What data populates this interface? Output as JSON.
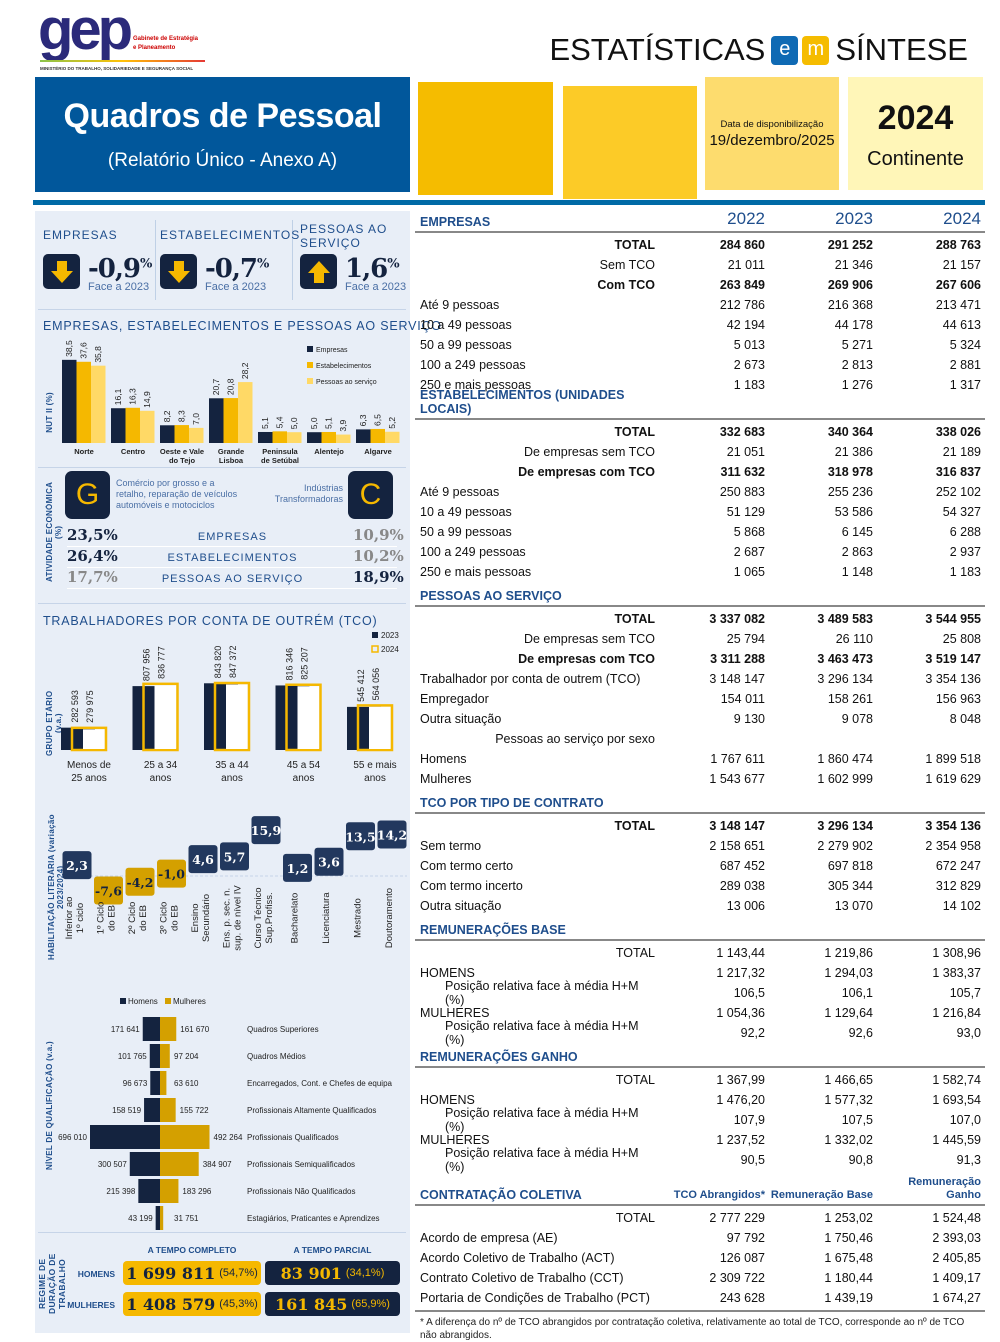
{
  "logo": {
    "text": "gep",
    "sub1": "Gabinete de Estratégia",
    "sub2": "e Planeamento",
    "ministry": "MINISTÉRIO DO TRABALHO, SOLIDARIEDADE E SEGURANÇA SOCIAL"
  },
  "series_title": {
    "part1": "ESTATÍSTICAS",
    "e": "e",
    "m": "m",
    "part2": "SÍNTESE"
  },
  "header": {
    "title": "Quadros de Pessoal",
    "subtitle": "(Relatório Único - Anexo A)",
    "date_label": "Data de disponibilização",
    "date": "19/dezembro/2025",
    "year": "2024",
    "region": "Continente"
  },
  "colors": {
    "navy": "#14233f",
    "blue": "#01579b",
    "yellow": "#f5b800",
    "light_yellow": "#ffd966",
    "gold": "#d4a000",
    "text_blue": "#1f4e8c"
  },
  "kpis": [
    {
      "label": "EMPRESAS",
      "value": "-0,9",
      "unit": "%",
      "note": "Face a 2023",
      "direction": "down",
      "icon": "arrow-down-icon"
    },
    {
      "label": "ESTABELECIMENTOS",
      "value": "-0,7",
      "unit": "%",
      "note": "Face a 2023",
      "direction": "down",
      "icon": "arrow-down-icon"
    },
    {
      "label": "PESSOAS AO SERVIÇO",
      "value": "1,6",
      "unit": "%",
      "note": "Face a 2023",
      "direction": "up",
      "icon": "arrow-up-icon"
    }
  ],
  "chart_data": [
    {
      "type": "bar",
      "title": "EMPRESAS, ESTABELECIMENTOS E PESSOAS AO SERVIÇO",
      "ylabel": "NUT II (%)",
      "categories": [
        "Norte",
        "Centro",
        "Oeste e Vale do Tejo",
        "Grande Lisboa",
        "Península de Setúbal",
        "Alentejo",
        "Algarve"
      ],
      "category_lines": [
        [
          "Norte"
        ],
        [
          "Centro"
        ],
        [
          "Oeste e Vale",
          "do Tejo"
        ],
        [
          "Grande",
          "Lisboa"
        ],
        [
          "Peninsula",
          "de Setúbal"
        ],
        [
          "Alentejo"
        ],
        [
          "Algarve"
        ]
      ],
      "legend": "top-right",
      "series": [
        {
          "name": "Empresas",
          "color": "#14233f",
          "values": [
            38.5,
            16.1,
            8.2,
            20.7,
            5.1,
            5.0,
            6.3
          ],
          "labels": [
            "38,5",
            "16,1",
            "8,2",
            "20,7",
            "5,1",
            "5,0",
            "6,3"
          ]
        },
        {
          "name": "Estabelecimentos",
          "color": "#f5b800",
          "values": [
            37.6,
            16.3,
            8.3,
            20.8,
            5.4,
            5.1,
            6.5
          ],
          "labels": [
            "37,6",
            "16,3",
            "8,3",
            "20,8",
            "5,4",
            "5,1",
            "6,5"
          ]
        },
        {
          "name": "Pessoas ao serviço",
          "color": "#ffd966",
          "values": [
            35.8,
            14.9,
            7.0,
            28.2,
            5.0,
            3.9,
            5.2
          ],
          "labels": [
            "35,8",
            "14,9",
            "7,0",
            "28,2",
            "5,0",
            "3,9",
            "5,2"
          ]
        }
      ]
    },
    {
      "type": "bar",
      "title": "TRABALHADORES POR CONTA DE OUTRÉM (TCO)",
      "ylabel": "GRUPO ETÁRIO (v.a.)",
      "categories": [
        "Menos de 25 anos",
        "25 a 34 anos",
        "35 a 44 anos",
        "45 a 54 anos",
        "55 e mais anos"
      ],
      "category_lines": [
        [
          "Menos de",
          "25 anos"
        ],
        [
          "25 a 34",
          "anos"
        ],
        [
          "35 a 44",
          "anos"
        ],
        [
          "45 a 54",
          "anos"
        ],
        [
          "55 e mais",
          "anos"
        ]
      ],
      "legend": "top-right",
      "series": [
        {
          "name": "2023",
          "values": [
            282593,
            807956,
            843820,
            816346,
            545412
          ],
          "labels": [
            "282 593",
            "807 956",
            "843 820",
            "816 346",
            "545 412"
          ]
        },
        {
          "name": "2024",
          "values": [
            279975,
            836777,
            847372,
            825207,
            564056
          ],
          "labels": [
            "279 975",
            "836 777",
            "847 372",
            "825 207",
            "564 056"
          ]
        }
      ]
    },
    {
      "type": "bar",
      "ylabel": "HABILITAÇÃO LITERÁRIA (variação 2023/2024)",
      "categories": [
        "Inferior ao 1º ciclo",
        "1º Ciclo do EB",
        "2º Ciclo do EB",
        "3º Ciclo do EB",
        "Ensino Secundário",
        "Ens. p. sec. n. sup. de nível IV",
        "Curso Técnico Sup.Profiss.",
        "Bacharelato",
        "Licenciatura",
        "Mestrado",
        "Doutoramento"
      ],
      "category_lines": [
        [
          "Inferior ao",
          "1º ciclo"
        ],
        [
          "1º Ciclo",
          "do EB"
        ],
        [
          "2º Ciclo",
          "do EB"
        ],
        [
          "3º Ciclo",
          "do EB"
        ],
        [
          "Ensino",
          "Secundário"
        ],
        [
          "Ens. p. sec. n.",
          "sup. de nível IV"
        ],
        [
          "Curso Técnico",
          "Sup.Profiss."
        ],
        [
          "Bacharelato"
        ],
        [
          "Licenciatura"
        ],
        [
          "Mestrado"
        ],
        [
          "Doutoramento"
        ]
      ],
      "values": [
        2.3,
        -7.6,
        -4.2,
        -1.0,
        4.6,
        5.7,
        15.9,
        1.2,
        3.6,
        13.5,
        14.2
      ],
      "labels": [
        "2,3",
        "-7,6",
        "-4,2",
        "-1,0",
        "4,6",
        "5,7",
        "15,9",
        "1,2",
        "3,6",
        "13,5",
        "14,2"
      ]
    },
    {
      "type": "bar",
      "orientation": "horizontal-pyramid",
      "ylabel": "NÍVEL DE QUALIFICAÇÃO (v.a.)",
      "legend": "top",
      "categories": [
        "Quadros Superiores",
        "Quadros Médios",
        "Encarregados, Cont. e Chefes de equipa",
        "Profissionais Altamente Qualificados",
        "Profissionais Qualificados",
        "Profissionais Semiqualificados",
        "Profissionais Não Qualificados",
        "Estagiários, Praticantes e Aprendizes"
      ],
      "series": [
        {
          "name": "Homens",
          "color": "#14233f",
          "values": [
            171641,
            101765,
            96673,
            158519,
            696010,
            300507,
            215398,
            43199
          ],
          "labels": [
            "171 641",
            "101 765",
            "96 673",
            "158 519",
            "696 010",
            "300 507",
            "215 398",
            "43 199"
          ]
        },
        {
          "name": "Mulheres",
          "color": "#d4a000",
          "values": [
            161670,
            97204,
            63610,
            155722,
            492264,
            384907,
            183296,
            31751
          ],
          "labels": [
            "161 670",
            "97 204",
            "63 610",
            "155 722",
            "492 264",
            "384 907",
            "183 296",
            "31 751"
          ]
        }
      ]
    }
  ],
  "activity": {
    "ylabel": "ATIVIDADE ECONÓMICA (%)",
    "left": {
      "code": "G",
      "desc": "Comércio por grosso e a retalho, reparação de veículos automóveis e motociclos"
    },
    "right": {
      "code": "C",
      "desc": "Indústrias Transformadoras"
    },
    "rows": [
      {
        "label": "EMPRESAS",
        "left": "23,5",
        "right": "10,9",
        "left_highlight": true
      },
      {
        "label": "ESTABELECIMENTOS",
        "left": "26,4",
        "right": "10,2",
        "left_highlight": true
      },
      {
        "label": "PESSOAS AO SERVIÇO",
        "left": "17,7",
        "right": "18,9",
        "left_highlight": false
      }
    ],
    "unit": "%"
  },
  "regime": {
    "ylabel": "REGIME DE DURAÇÃO DE TRABALHO",
    "col1": "A TEMPO COMPLETO",
    "col2": "A TEMPO PARCIAL",
    "rows": [
      {
        "label": "HOMENS",
        "full": "1 699 811",
        "full_pct": "(54,7%)",
        "part": "83 901",
        "part_pct": "(34,1%)"
      },
      {
        "label": "MULHERES",
        "full": "1 408 579",
        "full_pct": "(45,3%)",
        "part": "161 845",
        "part_pct": "(65,9%)"
      }
    ]
  },
  "table": {
    "years": [
      "2022",
      "2023",
      "2024"
    ],
    "sections": [
      {
        "title": "EMPRESAS",
        "show_years": true,
        "rows": [
          {
            "label": "TOTAL",
            "align": "right",
            "bold": true,
            "v": [
              "284 860",
              "291 252",
              "288 763"
            ]
          },
          {
            "label": "Sem TCO",
            "align": "right",
            "v": [
              "21 011",
              "21 346",
              "21 157"
            ]
          },
          {
            "label": "Com TCO",
            "align": "right",
            "bold": true,
            "v": [
              "263 849",
              "269 906",
              "267 606"
            ]
          },
          {
            "label": "Até 9 pessoas",
            "v": [
              "212 786",
              "216 368",
              "213 471"
            ]
          },
          {
            "label": "10 a 49 pessoas",
            "v": [
              "42 194",
              "44 178",
              "44 613"
            ]
          },
          {
            "label": "50 a 99 pessoas",
            "v": [
              "5 013",
              "5 271",
              "5 324"
            ]
          },
          {
            "label": "100 a 249 pessoas",
            "v": [
              "2 673",
              "2 813",
              "2 881"
            ]
          },
          {
            "label": "250 e mais pessoas",
            "v": [
              "1 183",
              "1 276",
              "1 317"
            ]
          }
        ]
      },
      {
        "title": "ESTABELECIMENTOS (UNIDADES LOCAIS)",
        "rows": [
          {
            "label": "TOTAL",
            "align": "right",
            "bold": true,
            "v": [
              "332 683",
              "340 364",
              "338 026"
            ]
          },
          {
            "label": "De empresas sem TCO",
            "align": "right",
            "v": [
              "21 051",
              "21 386",
              "21 189"
            ]
          },
          {
            "label": "De empresas com TCO",
            "align": "right",
            "bold": true,
            "v": [
              "311 632",
              "318 978",
              "316 837"
            ]
          },
          {
            "label": "Até 9 pessoas",
            "v": [
              "250 883",
              "255 236",
              "252 102"
            ]
          },
          {
            "label": "10 a 49 pessoas",
            "v": [
              "51 129",
              "53 586",
              "54 327"
            ]
          },
          {
            "label": "50 a 99 pessoas",
            "v": [
              "5 868",
              "6 145",
              "6 288"
            ]
          },
          {
            "label": "100 a 249 pessoas",
            "v": [
              "2 687",
              "2 863",
              "2 937"
            ]
          },
          {
            "label": "250 e mais pessoas",
            "v": [
              "1 065",
              "1 148",
              "1 183"
            ]
          }
        ]
      },
      {
        "title": "PESSOAS AO SERVIÇO",
        "rows": [
          {
            "label": "TOTAL",
            "align": "right",
            "bold": true,
            "v": [
              "3 337 082",
              "3 489 583",
              "3 544 955"
            ]
          },
          {
            "label": "De empresas sem TCO",
            "align": "right",
            "v": [
              "25 794",
              "26 110",
              "25 808"
            ]
          },
          {
            "label": "De empresas com TCO",
            "align": "right",
            "bold": true,
            "v": [
              "3 311 288",
              "3 463 473",
              "3 519 147"
            ]
          },
          {
            "label": "Trabalhador por conta de outrem (TCO)",
            "v": [
              "3 148 147",
              "3 296 134",
              "3 354 136"
            ]
          },
          {
            "label": "Empregador",
            "v": [
              "154 011",
              "158 261",
              "156 963"
            ]
          },
          {
            "label": "Outra situação",
            "v": [
              "9 130",
              "9 078",
              "8 048"
            ]
          },
          {
            "label": "Pessoas ao serviço por sexo",
            "align": "right",
            "v": [
              "",
              "",
              ""
            ]
          },
          {
            "label": "Homens",
            "v": [
              "1 767 611",
              "1 860 474",
              "1 899 518"
            ]
          },
          {
            "label": "Mulheres",
            "v": [
              "1 543 677",
              "1 602 999",
              "1 619 629"
            ]
          }
        ]
      },
      {
        "title": "TCO POR TIPO DE CONTRATO",
        "rows": [
          {
            "label": "TOTAL",
            "align": "right",
            "bold": true,
            "v": [
              "3 148 147",
              "3 296 134",
              "3 354 136"
            ]
          },
          {
            "label": "Sem termo",
            "v": [
              "2 158 651",
              "2 279 902",
              "2 354 958"
            ]
          },
          {
            "label": "Com termo certo",
            "v": [
              "687 452",
              "697 818",
              "672 247"
            ]
          },
          {
            "label": "Com termo incerto",
            "v": [
              "289 038",
              "305 344",
              "312 829"
            ]
          },
          {
            "label": "Outra situação",
            "v": [
              "13 006",
              "13 070",
              "14 102"
            ]
          }
        ]
      },
      {
        "title": "REMUNERAÇÕES BASE",
        "rows": [
          {
            "label": "TOTAL",
            "align": "right",
            "v": [
              "1 143,44",
              "1 219,86",
              "1 308,96"
            ]
          },
          {
            "label": "HOMENS",
            "v": [
              "1 217,32",
              "1 294,03",
              "1 383,37"
            ]
          },
          {
            "label": "Posição relativa face à média H+M (%)",
            "indent": true,
            "v": [
              "106,5",
              "106,1",
              "105,7"
            ]
          },
          {
            "label": "MULHERES",
            "v": [
              "1 054,36",
              "1 129,64",
              "1 216,84"
            ]
          },
          {
            "label": "Posição relativa face à média H+M (%)",
            "indent": true,
            "v": [
              "92,2",
              "92,6",
              "93,0"
            ]
          }
        ]
      },
      {
        "title": "REMUNERAÇÕES GANHO",
        "rows": [
          {
            "label": "TOTAL",
            "align": "right",
            "v": [
              "1 367,99",
              "1 466,65",
              "1 582,74"
            ]
          },
          {
            "label": "HOMENS",
            "v": [
              "1 476,20",
              "1 577,32",
              "1 693,54"
            ]
          },
          {
            "label": "Posição relativa face à média H+M (%)",
            "indent": true,
            "v": [
              "107,9",
              "107,5",
              "107,0"
            ]
          },
          {
            "label": "MULHERES",
            "v": [
              "1 237,52",
              "1 332,02",
              "1 445,59"
            ]
          },
          {
            "label": "Posição relativa face à média H+M (%)",
            "indent": true,
            "v": [
              "90,5",
              "90,8",
              "91,3"
            ]
          }
        ]
      },
      {
        "title": "CONTRATAÇÃO COLETIVA",
        "col_heads": [
          "TCO Abrangidos*",
          "Remuneração Base",
          "Remuneração Ganho"
        ],
        "rows": [
          {
            "label": "TOTAL",
            "align": "right",
            "v": [
              "2 777 229",
              "1 253,02",
              "1 524,48"
            ]
          },
          {
            "label": "Acordo de empresa (AE)",
            "v": [
              "97 792",
              "1 750,46",
              "2 393,03"
            ]
          },
          {
            "label": "Acordo Coletivo de Trabalho (ACT)",
            "v": [
              "126 087",
              "1 675,48",
              "2 405,85"
            ]
          },
          {
            "label": "Contrato Coletivo de Trabalho (CCT)",
            "v": [
              "2 309 722",
              "1 180,44",
              "1 409,17"
            ]
          },
          {
            "label": "Portaria de Condições de Trabalho (PCT)",
            "v": [
              "243 628",
              "1 439,19",
              "1 674,27"
            ]
          }
        ]
      }
    ],
    "footnote": "* A diferença do nº de TCO abrangidos por contratação coletiva, relativamente ao total de TCO, corresponde ao nº de TCO não abrangidos."
  }
}
